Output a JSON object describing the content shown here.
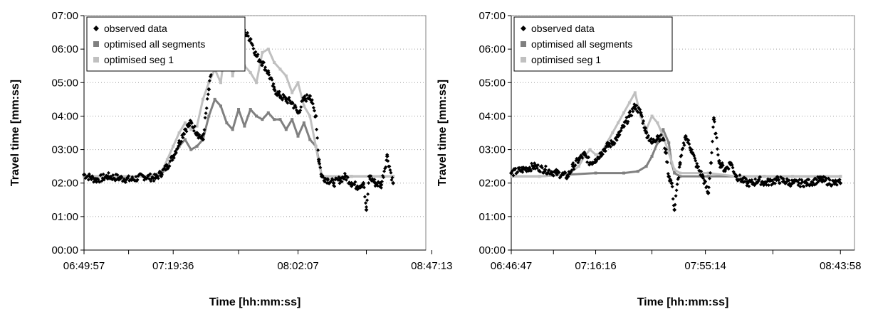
{
  "chart_data": [
    {
      "type": "scatter",
      "title": "",
      "xlabel": "Time [hh:mm:ss]",
      "ylabel": "Travel time [mm:ss]",
      "x_ticks": [
        "06:49:57",
        "07:19:36",
        "08:02:07",
        "08:47:13"
      ],
      "y_ticks": [
        "00:00",
        "01:00",
        "02:00",
        "03:00",
        "04:00",
        "05:00",
        "06:00",
        "07:00"
      ],
      "ylim_minutes": [
        0,
        7
      ],
      "grid": "horizontal dotted",
      "legend_position": "top-left",
      "series": [
        {
          "name": "observed data",
          "color": "#000000",
          "marker": "diamond",
          "x_minutes_from_first_tick": [
            0,
            4,
            8,
            12,
            16,
            20,
            24,
            26,
            28,
            30,
            32,
            34,
            36,
            38,
            40,
            42,
            43,
            44,
            45,
            46,
            47,
            48,
            50,
            52,
            54,
            56,
            58,
            60,
            62,
            64,
            66,
            68,
            70,
            72,
            74,
            76,
            78,
            79,
            80,
            82,
            84,
            86,
            88,
            90,
            92,
            94,
            95,
            96,
            98,
            100,
            102,
            104
          ],
          "y_minutes": [
            2.25,
            2.1,
            2.2,
            2.15,
            2.1,
            2.2,
            2.15,
            2.3,
            2.5,
            2.8,
            3.2,
            3.6,
            3.8,
            3.5,
            3.3,
            4.8,
            5.4,
            5.9,
            6.2,
            5.7,
            6.3,
            6.5,
            6.2,
            6.6,
            6.5,
            6.3,
            5.8,
            5.6,
            5.3,
            4.8,
            4.6,
            4.5,
            4.4,
            4.1,
            4.5,
            4.6,
            4.0,
            2.7,
            2.2,
            2.1,
            2.0,
            2.1,
            2.2,
            2.0,
            1.9,
            2.0,
            1.2,
            2.2,
            2.0,
            1.95,
            2.8,
            2.0
          ]
        },
        {
          "name": "optimised all segments",
          "color": "#808080",
          "marker": "square",
          "x_minutes_from_first_tick": [
            0,
            10,
            20,
            26,
            28,
            30,
            32,
            34,
            36,
            38,
            40,
            42,
            44,
            46,
            48,
            50,
            52,
            54,
            56,
            58,
            60,
            62,
            64,
            66,
            68,
            70,
            72,
            74,
            76,
            78,
            79,
            80,
            90,
            100,
            104
          ],
          "y_minutes": [
            2.2,
            2.2,
            2.2,
            2.25,
            2.5,
            2.8,
            3.1,
            3.3,
            3.0,
            3.1,
            3.3,
            4.0,
            4.5,
            4.3,
            3.8,
            3.6,
            4.2,
            3.7,
            4.2,
            4.0,
            3.9,
            4.1,
            3.9,
            3.9,
            3.6,
            3.9,
            3.4,
            3.8,
            3.3,
            3.1,
            2.7,
            2.2,
            2.2,
            2.2,
            2.2
          ]
        },
        {
          "name": "optimised seg 1",
          "color": "#c0c0c0",
          "marker": "square",
          "x_minutes_from_first_tick": [
            0,
            10,
            20,
            26,
            28,
            30,
            32,
            34,
            36,
            38,
            40,
            42,
            44,
            46,
            48,
            50,
            52,
            54,
            56,
            58,
            60,
            62,
            64,
            66,
            68,
            70,
            72,
            74,
            76,
            78,
            79,
            80,
            90,
            100,
            104
          ],
          "y_minutes": [
            2.2,
            2.2,
            2.2,
            2.3,
            2.7,
            3.1,
            3.5,
            3.8,
            3.6,
            3.7,
            4.5,
            5.0,
            5.4,
            5.0,
            6.4,
            5.2,
            6.0,
            5.5,
            5.3,
            5.0,
            5.9,
            6.0,
            5.6,
            5.4,
            5.2,
            4.7,
            5.0,
            4.3,
            4.0,
            3.1,
            2.6,
            2.2,
            2.2,
            2.2,
            2.2
          ]
        }
      ]
    },
    {
      "type": "scatter",
      "title": "",
      "xlabel": "Time [hh:mm:ss]",
      "ylabel": "Travel time [mm:ss]",
      "x_ticks": [
        "06:46:47",
        "07:16:16",
        "07:55:14",
        "08:43:58"
      ],
      "y_ticks": [
        "00:00",
        "01:00",
        "02:00",
        "03:00",
        "04:00",
        "05:00",
        "06:00",
        "07:00"
      ],
      "ylim_minutes": [
        0,
        7
      ],
      "grid": "horizontal dotted",
      "legend_position": "top-left",
      "series": [
        {
          "name": "observed data",
          "color": "#000000",
          "marker": "diamond",
          "x_minutes_from_first_tick": [
            0,
            4,
            8,
            12,
            16,
            20,
            22,
            24,
            26,
            28,
            30,
            32,
            34,
            36,
            38,
            40,
            42,
            44,
            46,
            48,
            50,
            52,
            54,
            55,
            56,
            57,
            58,
            60,
            62,
            64,
            66,
            68,
            70,
            71,
            72,
            74,
            76,
            78,
            80,
            82,
            84,
            86,
            88,
            90,
            95,
            100,
            105,
            110,
            115,
            117
          ],
          "y_minutes": [
            2.3,
            2.4,
            2.5,
            2.4,
            2.3,
            2.2,
            2.5,
            2.7,
            2.85,
            2.6,
            2.7,
            2.9,
            3.1,
            3.2,
            3.4,
            3.7,
            4.0,
            4.3,
            4.1,
            3.5,
            3.2,
            3.4,
            3.3,
            2.9,
            2.2,
            2.0,
            1.2,
            2.6,
            3.4,
            3.0,
            2.5,
            2.2,
            1.7,
            2.6,
            3.9,
            2.6,
            2.4,
            2.6,
            2.2,
            2.1,
            2.0,
            2.0,
            2.1,
            2.0,
            2.1,
            2.0,
            2.0,
            2.1,
            2.0,
            2.0
          ]
        },
        {
          "name": "optimised all segments",
          "color": "#808080",
          "marker": "square",
          "x_minutes_from_first_tick": [
            0,
            10,
            20,
            30,
            40,
            45,
            48,
            50,
            52,
            54,
            56,
            57,
            58,
            60,
            70,
            80,
            90,
            100,
            110,
            117
          ],
          "y_minutes": [
            2.2,
            2.2,
            2.25,
            2.3,
            2.3,
            2.35,
            2.5,
            2.8,
            3.2,
            3.6,
            3.2,
            2.6,
            2.3,
            2.2,
            2.2,
            2.2,
            2.2,
            2.2,
            2.2,
            2.2
          ]
        },
        {
          "name": "optimised seg 1",
          "color": "#c0c0c0",
          "marker": "square",
          "x_minutes_from_first_tick": [
            0,
            10,
            20,
            24,
            26,
            28,
            30,
            32,
            34,
            36,
            38,
            40,
            42,
            44,
            46,
            48,
            50,
            52,
            54,
            56,
            58,
            60,
            70,
            80,
            90,
            100,
            110,
            117
          ],
          "y_minutes": [
            2.2,
            2.2,
            2.25,
            2.5,
            2.8,
            3.0,
            2.85,
            2.9,
            3.2,
            3.5,
            3.8,
            4.1,
            4.4,
            4.7,
            4.0,
            3.6,
            4.0,
            3.8,
            3.4,
            2.9,
            2.4,
            2.3,
            2.3,
            2.2,
            2.2,
            2.2,
            2.2,
            2.2
          ]
        }
      ]
    }
  ]
}
